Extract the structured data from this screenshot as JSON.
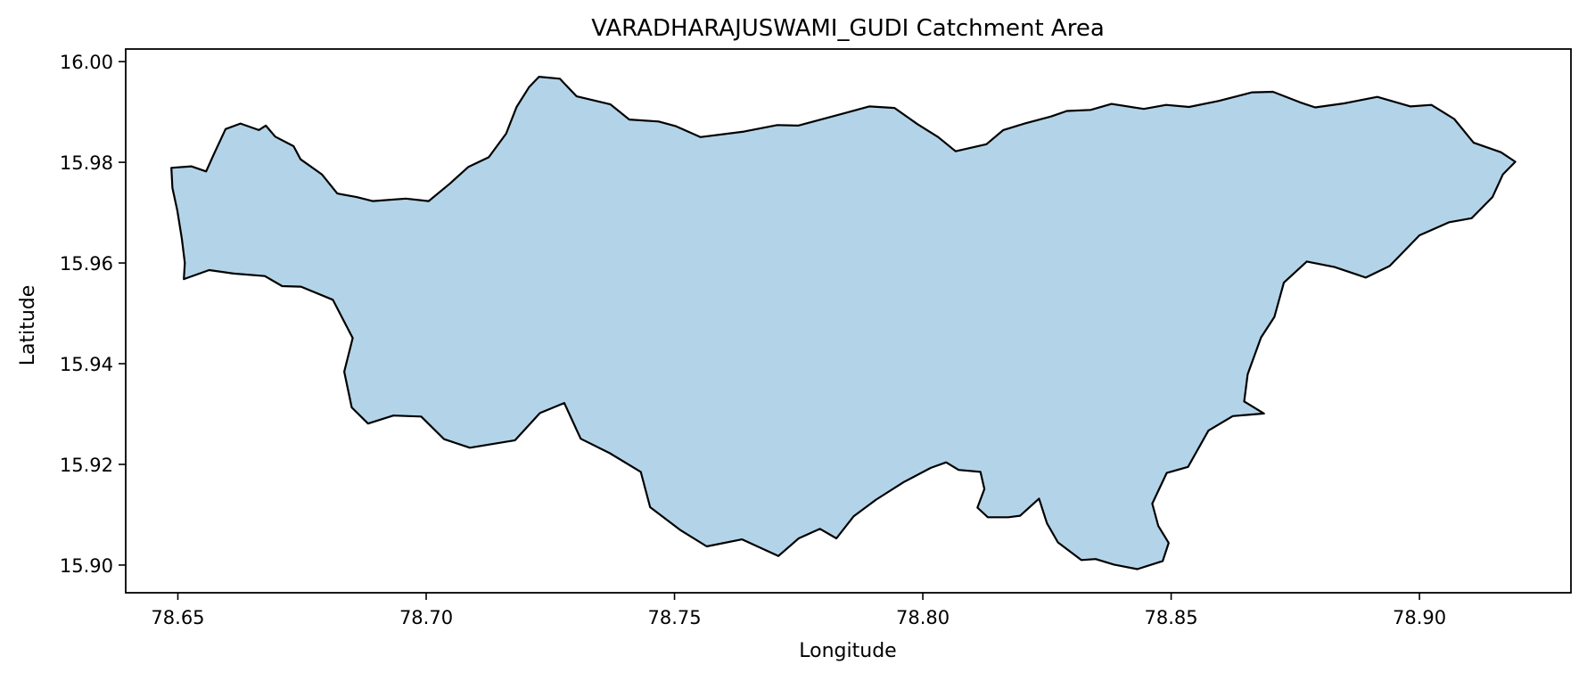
{
  "title": "VARADHARAJUSWAMI_GUDI Catchment Area",
  "chart_data": {
    "type": "area",
    "title": "VARADHARAJUSWAMI_GUDI Catchment Area",
    "xlabel": "Longitude",
    "ylabel": "Latitude",
    "xlim": [
      78.6395,
      78.9305
    ],
    "ylim": [
      15.8945,
      16.0025
    ],
    "xticks": [
      78.65,
      78.7,
      78.75,
      78.8,
      78.85,
      78.9
    ],
    "xtick_labels": [
      "78.65",
      "78.70",
      "78.75",
      "78.80",
      "78.85",
      "78.90"
    ],
    "yticks": [
      15.9,
      15.92,
      15.94,
      15.96,
      15.98,
      16.0
    ],
    "ytick_labels": [
      "15.90",
      "15.92",
      "15.94",
      "15.96",
      "15.98",
      "16.00"
    ],
    "grid": false,
    "series": [
      {
        "fill_color": "#b3d4e8",
        "edge_color": "#000000",
        "boundary": [
          [
            78.6487,
            15.9789
          ],
          [
            78.6527,
            15.9792
          ],
          [
            78.6557,
            15.9782
          ],
          [
            78.6572,
            15.9815
          ],
          [
            78.6596,
            15.9866
          ],
          [
            78.6626,
            15.9877
          ],
          [
            78.6663,
            15.9864
          ],
          [
            78.6677,
            15.9873
          ],
          [
            78.6696,
            15.9851
          ],
          [
            78.6733,
            15.9832
          ],
          [
            78.6747,
            15.9806
          ],
          [
            78.679,
            15.9776
          ],
          [
            78.6821,
            15.9738
          ],
          [
            78.686,
            15.9731
          ],
          [
            78.6892,
            15.9723
          ],
          [
            78.6959,
            15.9728
          ],
          [
            78.7005,
            15.9723
          ],
          [
            78.7048,
            15.9758
          ],
          [
            78.7085,
            15.9791
          ],
          [
            78.7126,
            15.981
          ],
          [
            78.7161,
            15.9857
          ],
          [
            78.7182,
            15.991
          ],
          [
            78.7207,
            15.9949
          ],
          [
            78.7227,
            15.997
          ],
          [
            78.7269,
            15.9966
          ],
          [
            78.7303,
            15.9931
          ],
          [
            78.7371,
            15.9915
          ],
          [
            78.7409,
            15.9885
          ],
          [
            78.7468,
            15.9881
          ],
          [
            78.7502,
            15.9872
          ],
          [
            78.7552,
            15.985
          ],
          [
            78.764,
            15.9861
          ],
          [
            78.7707,
            15.9874
          ],
          [
            78.7749,
            15.9873
          ],
          [
            78.7825,
            15.9893
          ],
          [
            78.7892,
            15.9911
          ],
          [
            78.7943,
            15.9908
          ],
          [
            78.7989,
            15.9876
          ],
          [
            78.8031,
            15.985
          ],
          [
            78.8066,
            15.9822
          ],
          [
            78.8128,
            15.9836
          ],
          [
            78.8162,
            15.9864
          ],
          [
            78.8205,
            15.9877
          ],
          [
            78.8258,
            15.9891
          ],
          [
            78.829,
            15.9902
          ],
          [
            78.8338,
            15.9904
          ],
          [
            78.838,
            15.9916
          ],
          [
            78.8445,
            15.9906
          ],
          [
            78.849,
            15.9914
          ],
          [
            78.8536,
            15.991
          ],
          [
            78.8596,
            15.9922
          ],
          [
            78.8663,
            15.9939
          ],
          [
            78.8705,
            15.994
          ],
          [
            78.876,
            15.9919
          ],
          [
            78.879,
            15.9909
          ],
          [
            78.8848,
            15.9917
          ],
          [
            78.8915,
            15.993
          ],
          [
            78.8982,
            15.9911
          ],
          [
            78.9024,
            15.9914
          ],
          [
            78.907,
            15.9886
          ],
          [
            78.9109,
            15.9839
          ],
          [
            78.9164,
            15.982
          ],
          [
            78.9193,
            15.9801
          ],
          [
            78.9168,
            15.9776
          ],
          [
            78.9147,
            15.9731
          ],
          [
            78.9105,
            15.9689
          ],
          [
            78.906,
            15.9681
          ],
          [
            78.9,
            15.9655
          ],
          [
            78.894,
            15.9594
          ],
          [
            78.8892,
            15.9571
          ],
          [
            78.8829,
            15.9592
          ],
          [
            78.8773,
            15.9603
          ],
          [
            78.8727,
            15.9561
          ],
          [
            78.8708,
            15.9493
          ],
          [
            78.8681,
            15.9452
          ],
          [
            78.8654,
            15.9379
          ],
          [
            78.8647,
            15.9325
          ],
          [
            78.8687,
            15.9301
          ],
          [
            78.8624,
            15.9296
          ],
          [
            78.8575,
            15.9267
          ],
          [
            78.8534,
            15.9195
          ],
          [
            78.8491,
            15.9183
          ],
          [
            78.8462,
            15.9122
          ],
          [
            78.8474,
            15.9078
          ],
          [
            78.8495,
            15.9044
          ],
          [
            78.8483,
            15.9008
          ],
          [
            78.8432,
            15.8992
          ],
          [
            78.8385,
            15.9001
          ],
          [
            78.8348,
            15.9012
          ],
          [
            78.8319,
            15.901
          ],
          [
            78.8272,
            15.9045
          ],
          [
            78.825,
            15.9083
          ],
          [
            78.8234,
            15.9132
          ],
          [
            78.8196,
            15.9098
          ],
          [
            78.8172,
            15.9095
          ],
          [
            78.8131,
            15.9095
          ],
          [
            78.811,
            15.9114
          ],
          [
            78.8124,
            15.9151
          ],
          [
            78.8116,
            15.9185
          ],
          [
            78.8072,
            15.9189
          ],
          [
            78.8047,
            15.9204
          ],
          [
            78.8016,
            15.9193
          ],
          [
            78.7962,
            15.9165
          ],
          [
            78.7906,
            15.913
          ],
          [
            78.7861,
            15.9097
          ],
          [
            78.7826,
            15.9053
          ],
          [
            78.7793,
            15.9072
          ],
          [
            78.775,
            15.9053
          ],
          [
            78.7709,
            15.9018
          ],
          [
            78.7636,
            15.9051
          ],
          [
            78.7565,
            15.9037
          ],
          [
            78.7511,
            15.907
          ],
          [
            78.7451,
            15.9115
          ],
          [
            78.7432,
            15.9185
          ],
          [
            78.737,
            15.9222
          ],
          [
            78.7311,
            15.9251
          ],
          [
            78.7278,
            15.9322
          ],
          [
            78.7229,
            15.9302
          ],
          [
            78.7179,
            15.9248
          ],
          [
            78.7088,
            15.9233
          ],
          [
            78.7036,
            15.925
          ],
          [
            78.699,
            15.9295
          ],
          [
            78.6934,
            15.9297
          ],
          [
            78.6883,
            15.9281
          ],
          [
            78.685,
            15.9313
          ],
          [
            78.6835,
            15.9384
          ],
          [
            78.6852,
            15.9451
          ],
          [
            78.6812,
            15.9527
          ],
          [
            78.6748,
            15.9553
          ],
          [
            78.671,
            15.9554
          ],
          [
            78.6675,
            15.9574
          ],
          [
            78.6612,
            15.9579
          ],
          [
            78.6563,
            15.9586
          ],
          [
            78.6512,
            15.9568
          ],
          [
            78.6514,
            15.96
          ],
          [
            78.6508,
            15.9649
          ],
          [
            78.6499,
            15.9704
          ],
          [
            78.6489,
            15.9749
          ]
        ]
      }
    ]
  }
}
